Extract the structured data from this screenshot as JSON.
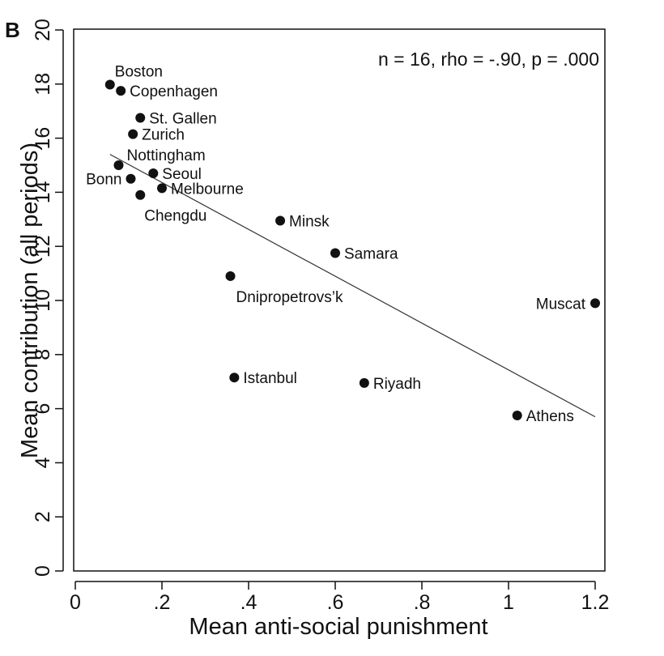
{
  "panel_label": "B",
  "chart_data": {
    "type": "scatter",
    "annotation": "n = 16, rho = -.90, p = .000",
    "xlabel": "Mean anti-social punishment",
    "ylabel": "Mean contribution (all periods)",
    "xlim": [
      0,
      1.22
    ],
    "ylim": [
      0,
      20
    ],
    "x_ticks": [
      0,
      0.2,
      0.4,
      0.6,
      0.8,
      1.0,
      1.2
    ],
    "x_tick_labels": [
      "0",
      ".2",
      ".4",
      ".6",
      ".8",
      "1",
      "1.2"
    ],
    "y_ticks": [
      0,
      2,
      4,
      6,
      8,
      10,
      12,
      14,
      16,
      18,
      20
    ],
    "y_tick_labels": [
      "0",
      "2",
      "4",
      "6",
      "8",
      "10",
      "12",
      "14",
      "16",
      "18",
      "20"
    ],
    "grid": false,
    "points": [
      {
        "label": "Boston",
        "x": 0.08,
        "y": 17.98
      },
      {
        "label": "Copenhagen",
        "x": 0.105,
        "y": 17.75
      },
      {
        "label": "St. Gallen",
        "x": 0.15,
        "y": 16.75
      },
      {
        "label": "Zurich",
        "x": 0.133,
        "y": 16.15
      },
      {
        "label": "Nottingham",
        "x": 0.1,
        "y": 15.0
      },
      {
        "label": "Seoul",
        "x": 0.18,
        "y": 14.7
      },
      {
        "label": "Bonn",
        "x": 0.128,
        "y": 14.5
      },
      {
        "label": "Melbourne",
        "x": 0.2,
        "y": 14.15
      },
      {
        "label": "Chengdu",
        "x": 0.15,
        "y": 13.9
      },
      {
        "label": "Minsk",
        "x": 0.473,
        "y": 12.95
      },
      {
        "label": "Samara",
        "x": 0.6,
        "y": 11.75
      },
      {
        "label": "Dnipropetrovs’k",
        "x": 0.358,
        "y": 10.9
      },
      {
        "label": "Muscat",
        "x": 1.2,
        "y": 9.9
      },
      {
        "label": "Istanbul",
        "x": 0.367,
        "y": 7.15
      },
      {
        "label": "Riyadh",
        "x": 0.667,
        "y": 6.95
      },
      {
        "label": "Athens",
        "x": 1.02,
        "y": 5.75
      }
    ],
    "fit_line": {
      "x1": 0.08,
      "y1": 15.4,
      "x2": 1.2,
      "y2": 5.7
    }
  }
}
